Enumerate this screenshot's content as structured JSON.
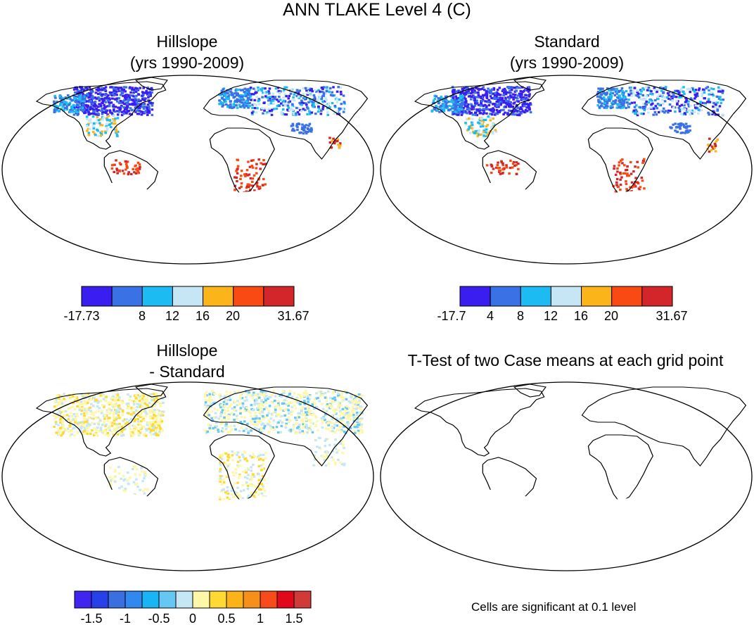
{
  "title": "ANN TLAKE Level 4 (C)",
  "panels": [
    {
      "id": "hillslope",
      "title_line1": "Hillslope",
      "title_line2": "(yrs 1990-2009)"
    },
    {
      "id": "standard",
      "title_line1": "Standard",
      "title_line2": "(yrs 1990-2009)"
    },
    {
      "id": "difference",
      "title_line1": "Hillslope",
      "title_line2": "- Standard"
    },
    {
      "id": "ttest",
      "title_line1": "T-Test of two Case means at each grid point",
      "title_line2": ""
    }
  ],
  "colorbars": {
    "hillslope": {
      "colors": [
        "#3a1ef0",
        "#3a72e6",
        "#1cbcf2",
        "#c6e6f6",
        "#fbb41a",
        "#fa4a14",
        "#d3262a"
      ],
      "labels": [
        "-17.73",
        "8",
        "12",
        "16",
        "20",
        "31.67"
      ]
    },
    "standard": {
      "colors": [
        "#3a1ef0",
        "#3a72e6",
        "#1cbcf2",
        "#c6e6f6",
        "#fbb41a",
        "#fa4a14",
        "#d3262a"
      ],
      "labels": [
        "-17.7",
        "4",
        "8",
        "12",
        "16",
        "20",
        "31.67"
      ]
    },
    "difference": {
      "colors": [
        "#4025f0",
        "#2741e8",
        "#3a6fe0",
        "#3189f0",
        "#19b4f4",
        "#66c8f2",
        "#c5e6f5",
        "#fff7a8",
        "#ffd933",
        "#fbb318",
        "#f79018",
        "#f74b1a",
        "#e0081a",
        "#d03a38"
      ],
      "labels": [
        "-1.5",
        "-1",
        "-0.5",
        "0",
        "0.5",
        "1",
        "1.5"
      ]
    }
  },
  "significance_note": "Cells are significant at 0.1 level",
  "icons": {
    "map_projection": "robinson-world-map-icon"
  }
}
